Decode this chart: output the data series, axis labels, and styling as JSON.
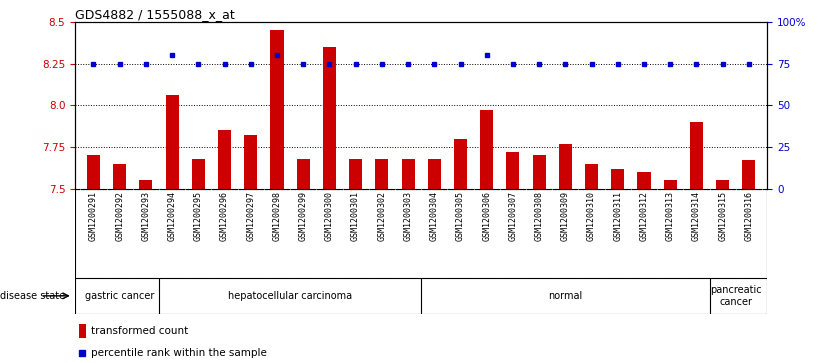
{
  "title": "GDS4882 / 1555088_x_at",
  "samples": [
    "GSM1200291",
    "GSM1200292",
    "GSM1200293",
    "GSM1200294",
    "GSM1200295",
    "GSM1200296",
    "GSM1200297",
    "GSM1200298",
    "GSM1200299",
    "GSM1200300",
    "GSM1200301",
    "GSM1200302",
    "GSM1200303",
    "GSM1200304",
    "GSM1200305",
    "GSM1200306",
    "GSM1200307",
    "GSM1200308",
    "GSM1200309",
    "GSM1200310",
    "GSM1200311",
    "GSM1200312",
    "GSM1200313",
    "GSM1200314",
    "GSM1200315",
    "GSM1200316"
  ],
  "transformed_count": [
    7.7,
    7.65,
    7.55,
    8.06,
    7.68,
    7.85,
    7.82,
    8.45,
    7.68,
    8.35,
    7.68,
    7.68,
    7.68,
    7.68,
    7.8,
    7.97,
    7.72,
    7.7,
    7.77,
    7.65,
    7.62,
    7.6,
    7.55,
    7.9,
    7.55,
    7.67
  ],
  "percentile_rank": [
    75,
    75,
    75,
    80,
    75,
    75,
    75,
    80,
    75,
    75,
    75,
    75,
    75,
    75,
    75,
    80,
    75,
    75,
    75,
    75,
    75,
    75,
    75,
    75,
    75,
    75
  ],
  "disease_groups": [
    {
      "label": "gastric cancer",
      "start": 0,
      "end": 3
    },
    {
      "label": "hepatocellular carcinoma",
      "start": 3,
      "end": 13
    },
    {
      "label": "normal",
      "start": 13,
      "end": 24
    },
    {
      "label": "pancreatic\ncancer",
      "start": 24,
      "end": 26
    }
  ],
  "ylim_left": [
    7.5,
    8.5
  ],
  "ylim_right": [
    0,
    100
  ],
  "yticks_left": [
    7.5,
    7.75,
    8.0,
    8.25,
    8.5
  ],
  "yticks_right": [
    0,
    25,
    50,
    75,
    100
  ],
  "bar_color": "#CC0000",
  "dot_color": "#0000CC",
  "gray_bg": "#C8C8C8",
  "green_bg": "#90EE90",
  "legend_bar_label": "transformed count",
  "legend_dot_label": "percentile rank within the sample",
  "bar_width": 0.5,
  "bar_bottom": 7.5
}
